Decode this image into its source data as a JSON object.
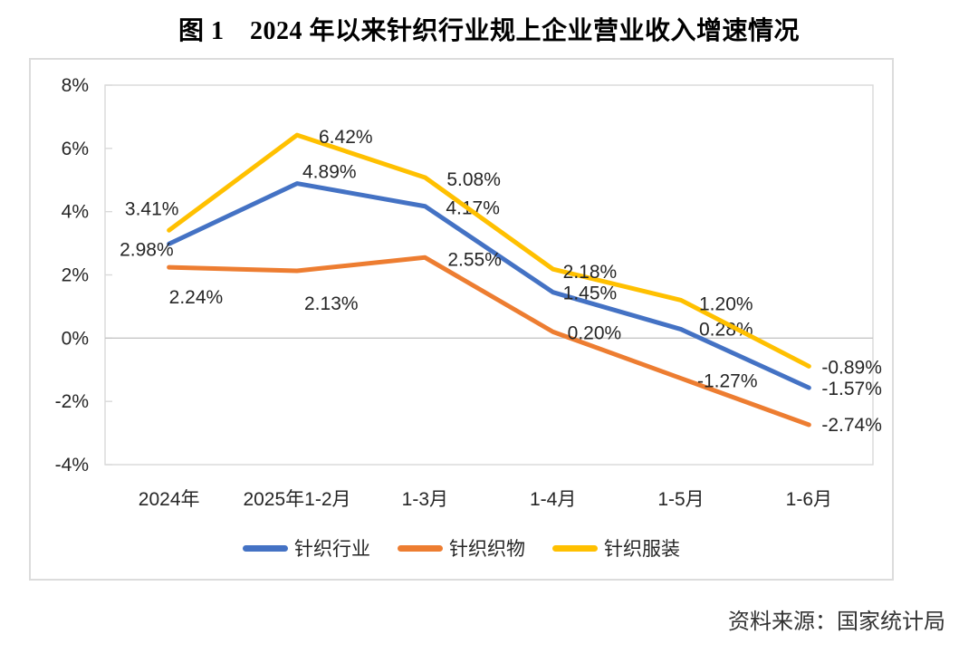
{
  "title": "图 1　2024 年以来针织行业规上企业营业收入增速情况",
  "source": "资料来源：国家统计局",
  "chart_data": {
    "type": "line",
    "categories": [
      "2024年",
      "2025年1-2月",
      "1-3月",
      "1-4月",
      "1-5月",
      "1-6月"
    ],
    "series": [
      {
        "name": "针织行业",
        "color": "#4472C4",
        "values": [
          2.98,
          4.89,
          4.17,
          1.45,
          0.28,
          -1.57
        ],
        "labels": [
          "2.98%",
          "4.89%",
          "4.17%",
          "1.45%",
          "0.28%",
          "-1.57%"
        ]
      },
      {
        "name": "针织织物",
        "color": "#ED7D31",
        "values": [
          2.24,
          2.13,
          2.55,
          0.2,
          -1.27,
          -2.74
        ],
        "labels": [
          "2.24%",
          "2.13%",
          "2.55%",
          "0.20%",
          "-1.27%",
          "-2.74%"
        ]
      },
      {
        "name": "针织服装",
        "color": "#FFC000",
        "values": [
          3.41,
          6.42,
          5.08,
          2.18,
          1.2,
          -0.89
        ],
        "labels": [
          "3.41%",
          "6.42%",
          "5.08%",
          "2.18%",
          "1.20%",
          "-0.89%"
        ]
      }
    ],
    "ylabel": "",
    "xlabel": "",
    "ylim": [
      -4,
      8
    ],
    "ytick_step": 2,
    "yticks": [
      8,
      6,
      4,
      2,
      0,
      -2,
      -4
    ],
    "ytick_labels": [
      "8%",
      "6%",
      "4%",
      "2%",
      "0%",
      "-2%",
      "-4%"
    ],
    "grid": "zero-line-only",
    "legend_position": "bottom",
    "axis_color": "#d9d9d9",
    "zero_line_color": "#c6c6c6",
    "label_color": "#262626"
  }
}
